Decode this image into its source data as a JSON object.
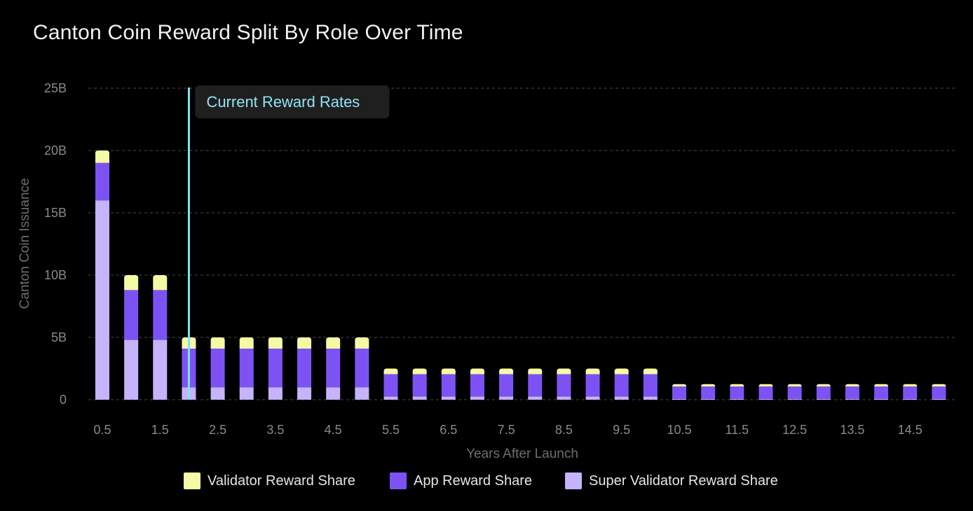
{
  "chart_data": {
    "type": "bar",
    "stacked": true,
    "title": "Canton Coin Reward Split By Role Over Time",
    "xlabel": "Years After Launch",
    "ylabel": "Canton Coin Issuance",
    "ylim": [
      0,
      25
    ],
    "y_ticks": [
      "0",
      "5B",
      "10B",
      "15B",
      "20B",
      "25B"
    ],
    "y_tick_values": [
      0,
      5,
      10,
      15,
      20,
      25
    ],
    "x_tick_labels": [
      "0.5",
      "1.5",
      "2.5",
      "3.5",
      "4.5",
      "5.5",
      "6.5",
      "7.5",
      "8.5",
      "9.5",
      "10.5",
      "11.5",
      "12.5",
      "13.5",
      "14.5"
    ],
    "x_tick_values": [
      0.5,
      1.5,
      2.5,
      3.5,
      4.5,
      5.5,
      6.5,
      7.5,
      8.5,
      9.5,
      10.5,
      11.5,
      12.5,
      13.5,
      14.5
    ],
    "x": [
      0.5,
      1,
      1.5,
      2,
      2.5,
      3,
      3.5,
      4,
      4.5,
      5,
      5.5,
      6,
      6.5,
      7,
      7.5,
      8,
      8.5,
      9,
      9.5,
      10,
      10.5,
      11,
      11.5,
      12,
      12.5,
      13,
      13.5,
      14,
      14.5,
      15
    ],
    "units": "billions of Canton Coin",
    "grid": "horizontal dashed",
    "legend_position": "bottom",
    "series": [
      {
        "name": "Super Validator Reward Share",
        "color": "#c5b3fb",
        "values": [
          16,
          4.8,
          4.8,
          1,
          1,
          1,
          1,
          1,
          1,
          1,
          0.25,
          0.25,
          0.25,
          0.25,
          0.25,
          0.25,
          0.25,
          0.25,
          0.25,
          0.25,
          0.06,
          0.06,
          0.06,
          0.06,
          0.06,
          0.06,
          0.06,
          0.06,
          0.06,
          0.06
        ]
      },
      {
        "name": "App Reward Share",
        "color": "#7d52f5",
        "values": [
          3,
          4,
          4,
          3.1,
          3.1,
          3.1,
          3.1,
          3.1,
          3.1,
          3.1,
          1.8,
          1.8,
          1.8,
          1.8,
          1.8,
          1.8,
          1.8,
          1.8,
          1.8,
          1.8,
          1.0,
          1.0,
          1.0,
          1.0,
          1.0,
          1.0,
          1.0,
          1.0,
          1.0,
          1.0
        ]
      },
      {
        "name": "Validator Reward Share",
        "color": "#f5fba4",
        "values": [
          1,
          1.2,
          1.2,
          0.9,
          0.9,
          0.9,
          0.9,
          0.9,
          0.9,
          0.9,
          0.45,
          0.45,
          0.45,
          0.45,
          0.45,
          0.45,
          0.45,
          0.45,
          0.45,
          0.45,
          0.19,
          0.19,
          0.19,
          0.19,
          0.19,
          0.19,
          0.19,
          0.19,
          0.19,
          0.19
        ]
      }
    ],
    "annotation": {
      "label": "Current Reward Rates",
      "x": 2,
      "line_color": "#7fe3f5"
    }
  },
  "legend": {
    "items": [
      {
        "label": "Validator Reward Share",
        "color": "#f5fba4"
      },
      {
        "label": "App Reward Share",
        "color": "#7d52f5"
      },
      {
        "label": "Super Validator Reward Share",
        "color": "#c5b3fb"
      }
    ]
  }
}
